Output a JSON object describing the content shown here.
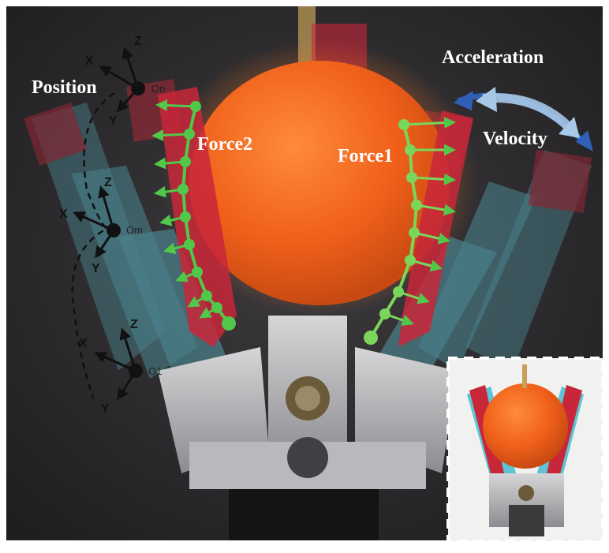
{
  "labels": {
    "position": "Position",
    "acceleration": "Acceleration",
    "velocity": "Velocity",
    "force1": "Force1",
    "force2": "Force2"
  },
  "frames": [
    {
      "origin": "On",
      "x": "X",
      "y": "Y",
      "z": "Z"
    },
    {
      "origin": "Om",
      "x": "X",
      "y": "Y",
      "z": "Z"
    },
    {
      "origin": "O1",
      "x": "X",
      "y": "Y",
      "z": "Z"
    }
  ],
  "colors": {
    "background": "#2c2a2c",
    "orange": "#f26a1b",
    "gripper_red": "#c8273a",
    "gripper_blue": "#5ec3d4",
    "force_green": "#52c84a",
    "arrow_blue": "#2f5fb7",
    "label_white": "#ffffff",
    "frame_black": "#111111"
  }
}
